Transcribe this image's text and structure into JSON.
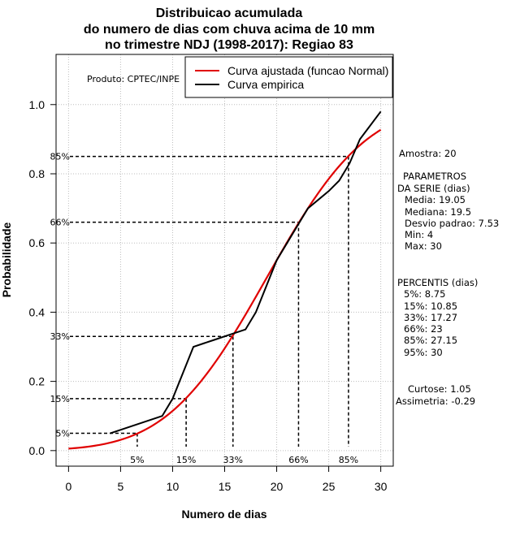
{
  "chart_data": {
    "type": "line",
    "title": [
      "Distribuicao acumulada",
      "do numero de dias com chuva acima de 10 mm",
      "no trimestre NDJ (1998-2017): Regiao 83"
    ],
    "xlabel": "Numero de dias",
    "ylabel": "Probabilidade",
    "xlim": [
      -1.2,
      31.2
    ],
    "ylim": [
      -0.045,
      1.145
    ],
    "x_ticks": [
      0,
      5,
      10,
      15,
      20,
      25,
      30
    ],
    "x_tick_labels": [
      "0",
      "5",
      "10",
      "15",
      "20",
      "25",
      "30"
    ],
    "y_ticks": [
      0.0,
      0.2,
      0.4,
      0.6,
      0.8,
      1.0
    ],
    "y_tick_labels": [
      "0.0",
      "0.2",
      "0.4",
      "0.6",
      "0.8",
      "1.0"
    ],
    "grid": true,
    "product_label": "Produto: CPTEC/INPE",
    "legend": {
      "position": "top-right",
      "entries": [
        {
          "label": "Curva ajustada (funcao Normal)",
          "color": "#e00000"
        },
        {
          "label": "Curva empirica",
          "color": "#000000"
        }
      ]
    },
    "series": [
      {
        "name": "Curva ajustada (funcao Normal)",
        "color": "#e00000",
        "distribution": "normal",
        "mean": 19.05,
        "sd": 7.53,
        "x_range": [
          0,
          30
        ]
      },
      {
        "name": "Curva empirica",
        "color": "#000000",
        "x": [
          4,
          9,
          10,
          11,
          12,
          13,
          14,
          15,
          16,
          17,
          18,
          19,
          20,
          21,
          22,
          23,
          24,
          25,
          26,
          27,
          28,
          29,
          30
        ],
        "y": [
          0.05,
          0.1,
          0.15,
          0.225,
          0.3,
          0.31,
          0.32,
          0.33,
          0.34,
          0.35,
          0.4,
          0.475,
          0.55,
          0.6,
          0.65,
          0.7,
          0.725,
          0.75,
          0.78,
          0.83,
          0.9,
          0.94,
          0.98
        ]
      }
    ],
    "percentile_markers": [
      {
        "label": "5%",
        "x": 6.6,
        "y": 0.05
      },
      {
        "label": "15%",
        "x": 11.3,
        "y": 0.15
      },
      {
        "label": "33%",
        "x": 15.8,
        "y": 0.33
      },
      {
        "label": "66%",
        "x": 22.1,
        "y": 0.66
      },
      {
        "label": "85%",
        "x": 26.9,
        "y": 0.85
      }
    ]
  },
  "stats": {
    "sample": "Amostra: 20",
    "params_title_1": "PARAMETROS",
    "params_title_2": "DA SERIE (dias)",
    "params": [
      "Media: 19.05",
      "Mediana: 19.5",
      "Desvio padrao: 7.53",
      "Min: 4",
      "Max: 30"
    ],
    "percentis_title": "PERCENTIS (dias)",
    "percentis": [
      "5%: 8.75",
      "15%: 10.85",
      "33%: 17.27",
      "66%: 23",
      "85%: 27.15",
      "95%: 30"
    ],
    "curtose": "Curtose: 1.05",
    "assimetria": "Assimetria: -0.29"
  }
}
